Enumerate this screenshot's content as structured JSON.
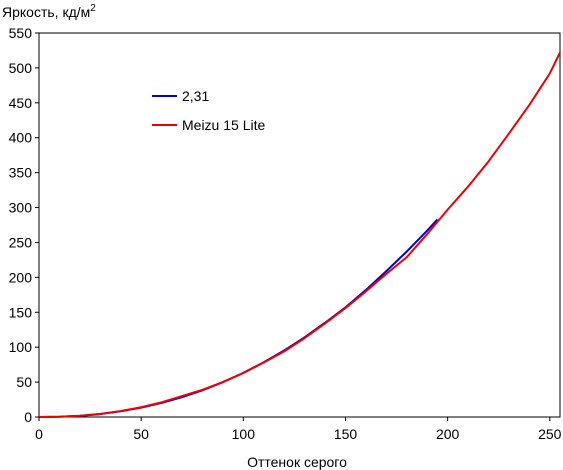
{
  "chart_data": {
    "type": "line",
    "title": "",
    "ylabel": "Яркость, кд/м",
    "ylabel_superscript": "2",
    "xlabel": "Оттенок серого",
    "xlim": [
      0,
      255
    ],
    "ylim": [
      0,
      550
    ],
    "xticks": [
      0,
      50,
      100,
      150,
      200,
      250
    ],
    "yticks": [
      0,
      50,
      100,
      150,
      200,
      250,
      300,
      350,
      400,
      450,
      500,
      550
    ],
    "grid": false,
    "legend_position": "top-left",
    "series": [
      {
        "name": "2,31",
        "color": "#0000cc",
        "x": [
          0,
          10,
          20,
          30,
          40,
          50,
          60,
          70,
          80,
          90,
          100,
          110,
          120,
          130,
          140,
          150,
          160,
          170,
          180,
          190,
          195
        ],
        "y": [
          0,
          0.3,
          1.6,
          4.2,
          8.2,
          13.4,
          20.2,
          28.4,
          38.3,
          49.9,
          63.2,
          78.4,
          95.3,
          114.1,
          135,
          157,
          182,
          209,
          237,
          267,
          283
        ]
      },
      {
        "name": "Meizu 15 Lite",
        "color": "#ee0000",
        "x": [
          0,
          10,
          20,
          30,
          40,
          50,
          60,
          70,
          80,
          90,
          100,
          110,
          120,
          130,
          140,
          150,
          160,
          170,
          180,
          190,
          200,
          210,
          220,
          230,
          240,
          250,
          255
        ],
        "y": [
          0,
          0.4,
          1.8,
          4.5,
          8.5,
          14,
          21,
          30,
          39,
          50,
          63,
          78,
          94,
          113,
          134,
          156,
          180,
          205,
          229,
          262,
          297,
          330,
          366,
          406,
          447,
          492,
          522
        ]
      }
    ]
  }
}
